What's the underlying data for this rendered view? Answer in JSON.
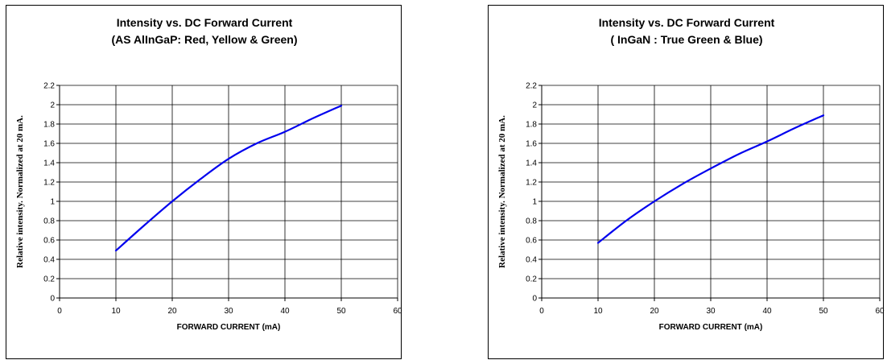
{
  "chart_data": [
    {
      "type": "line",
      "title": [
        "Intensity vs. DC Forward Current",
        "(AS AlInGaP: Red, Yellow & Green)"
      ],
      "xlabel": "FORWARD CURRENT (mA)",
      "ylabel": "Relative intensity. Normalized at 20 mA.",
      "xlim": [
        0,
        60
      ],
      "ylim": [
        0,
        2.2
      ],
      "x_ticks": [
        "0",
        "10",
        "20",
        "30",
        "40",
        "50",
        "60"
      ],
      "y_ticks": [
        "0",
        "0.2",
        "0.4",
        "0.6",
        "0.8",
        "1",
        "1.2",
        "1.4",
        "1.6",
        "1.8",
        "2",
        "2.2"
      ],
      "grid": true,
      "line_color": "#0000ee",
      "series": [
        {
          "x": [
            10,
            15,
            20,
            25,
            30,
            35,
            40,
            45,
            50
          ],
          "y": [
            0.49,
            0.75,
            1.0,
            1.23,
            1.44,
            1.6,
            1.72,
            1.86,
            1.99
          ]
        }
      ]
    },
    {
      "type": "line",
      "title": [
        "Intensity vs. DC Forward Current",
        "( InGaN : True Green & Blue)"
      ],
      "xlabel": "FORWARD CURRENT (mA)",
      "ylabel": "Relative intensity. Normalized at 20 mA.",
      "xlim": [
        0,
        60
      ],
      "ylim": [
        0,
        2.2
      ],
      "x_ticks": [
        "0",
        "10",
        "20",
        "30",
        "40",
        "50",
        "60"
      ],
      "y_ticks": [
        "0",
        "0.2",
        "0.4",
        "0.6",
        "0.8",
        "1",
        "1.2",
        "1.4",
        "1.6",
        "1.8",
        "2",
        "2.2"
      ],
      "grid": true,
      "line_color": "#0000ee",
      "series": [
        {
          "x": [
            10,
            15,
            20,
            25,
            30,
            35,
            40,
            45,
            50
          ],
          "y": [
            0.57,
            0.8,
            1.0,
            1.18,
            1.34,
            1.49,
            1.62,
            1.76,
            1.89
          ]
        }
      ]
    }
  ]
}
